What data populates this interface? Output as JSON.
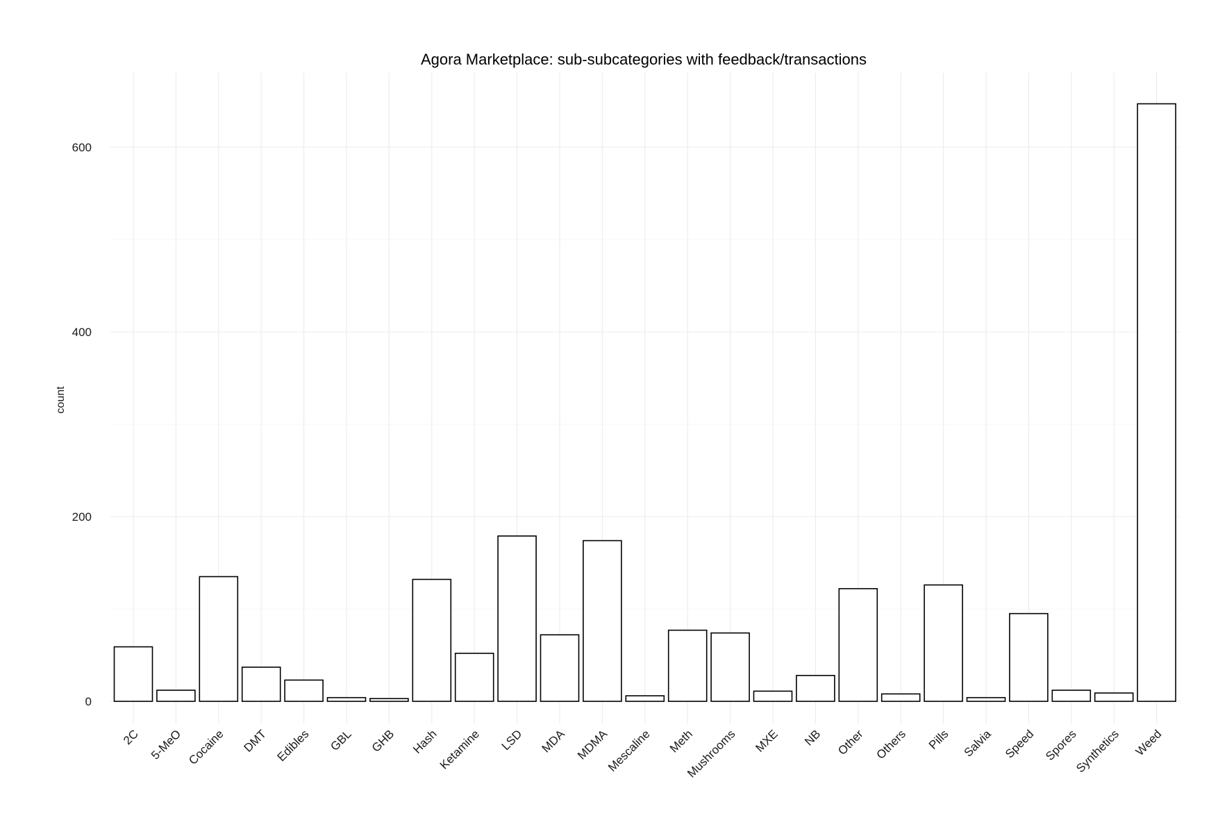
{
  "chart_data": {
    "type": "bar",
    "title": "Agora Marketplace: sub-subcategories with feedback/transactions",
    "xlabel": "",
    "ylabel": "count",
    "categories": [
      "2C",
      "5-MeO",
      "Cocaine",
      "DMT",
      "Edibles",
      "GBL",
      "GHB",
      "Hash",
      "Ketamine",
      "LSD",
      "MDA",
      "MDMA",
      "Mescaline",
      "Meth",
      "Mushrooms",
      "MXE",
      "NB",
      "Other",
      "Others",
      "Pills",
      "Salvia",
      "Speed",
      "Spores",
      "Synthetics",
      "Weed"
    ],
    "values": [
      59,
      12,
      135,
      37,
      23,
      4,
      3,
      132,
      52,
      179,
      72,
      174,
      6,
      77,
      74,
      11,
      28,
      122,
      8,
      126,
      4,
      95,
      12,
      9,
      647
    ],
    "ylim": [
      0,
      680
    ],
    "yticks": [
      0,
      200,
      400,
      600
    ],
    "grid": true,
    "legend": "none",
    "bar_fill": "#ffffff",
    "bar_stroke": "#000000",
    "grid_color": "#ebebeb"
  }
}
